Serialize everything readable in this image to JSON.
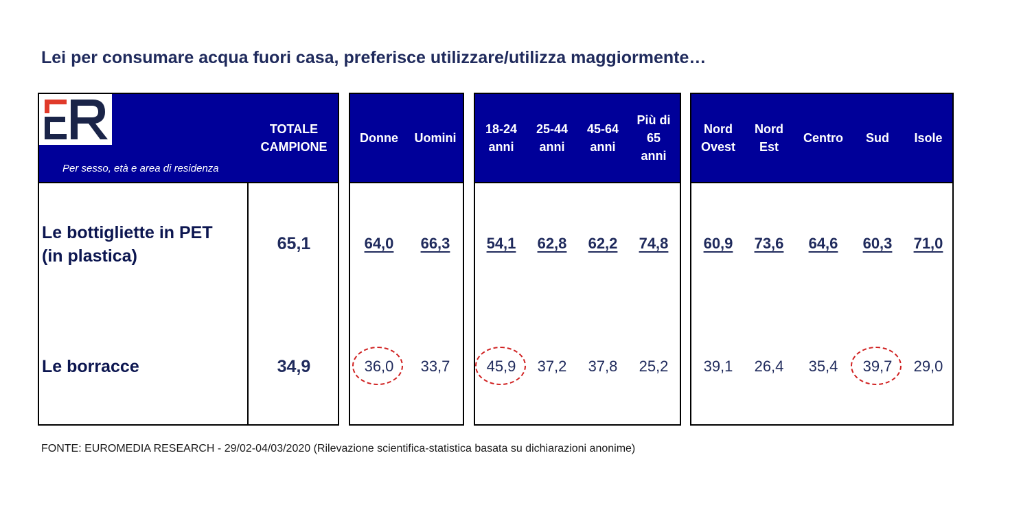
{
  "title": "Lei per consumare acqua fuori casa, preferisce utilizzare/utilizza maggiormente…",
  "subtitle": "Per sesso, età e area di residenza",
  "logo_text": "ER",
  "colors": {
    "header_bg": "#000099",
    "text": "#1f2a5c",
    "logo_red": "#e03a2a",
    "logo_navy": "#1a2448",
    "circle": "#d02020"
  },
  "header": {
    "totale": [
      "TOTALE",
      "CAMPIONE"
    ],
    "sesso": [
      [
        "Donne"
      ],
      [
        "Uomini"
      ]
    ],
    "eta": [
      [
        "18-24",
        "anni"
      ],
      [
        "25-44",
        "anni"
      ],
      [
        "45-64",
        "anni"
      ],
      [
        "Più di",
        "65",
        "anni"
      ]
    ],
    "area": [
      [
        "Nord",
        "Ovest"
      ],
      [
        "Nord",
        "Est"
      ],
      [
        "Centro"
      ],
      [
        "Sud"
      ],
      [
        "Isole"
      ]
    ]
  },
  "rows": [
    {
      "label": [
        "Le bottigliette in PET",
        "(in plastica)"
      ],
      "totale": "65,1",
      "sesso": [
        "64,0",
        "66,3"
      ],
      "eta": [
        "54,1",
        "62,8",
        "62,2",
        "74,8"
      ],
      "area": [
        "60,9",
        "73,6",
        "64,6",
        "60,3",
        "71,0"
      ]
    },
    {
      "label": [
        "Le borracce"
      ],
      "totale": "34,9",
      "sesso": [
        "36,0",
        "33,7"
      ],
      "eta": [
        "45,9",
        "37,2",
        "37,8",
        "25,2"
      ],
      "area": [
        "39,1",
        "26,4",
        "35,4",
        "39,7",
        "29,0"
      ]
    }
  ],
  "source": "FONTE: EUROMEDIA RESEARCH - 29/02-04/03/2020 (Rilevazione scientifica-statistica basata su dichiarazioni anonime)"
}
